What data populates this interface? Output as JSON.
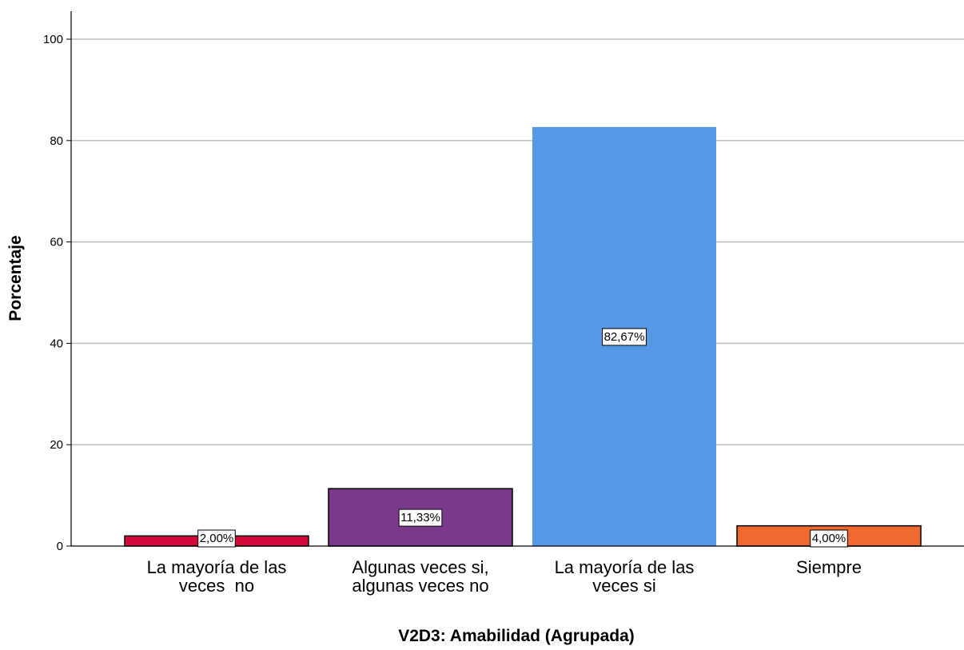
{
  "chart_data": {
    "type": "bar",
    "categories": [
      [
        "La mayoría de las",
        "veces  no"
      ],
      [
        "Algunas veces si,",
        "algunas veces no"
      ],
      [
        "La mayoría de las",
        "veces si"
      ],
      [
        "Siempre"
      ]
    ],
    "values": [
      2.0,
      11.33,
      82.67,
      4.0
    ],
    "data_labels": [
      "2,00%",
      "11,33%",
      "82,67%",
      "4,00%"
    ],
    "bar_colors": [
      "#d20a3a",
      "#7a3a8c",
      "#5598e4",
      "#f0692f"
    ],
    "bar_outlines": [
      true,
      true,
      false,
      true
    ],
    "xlabel": "V2D3: Amabilidad (Agrupada)",
    "ylabel": "Porcentaje",
    "ylim": [
      0,
      100
    ],
    "yticks": [
      0,
      20,
      40,
      60,
      80,
      100
    ],
    "grid": true,
    "grid_color": "#bdbdbd"
  }
}
